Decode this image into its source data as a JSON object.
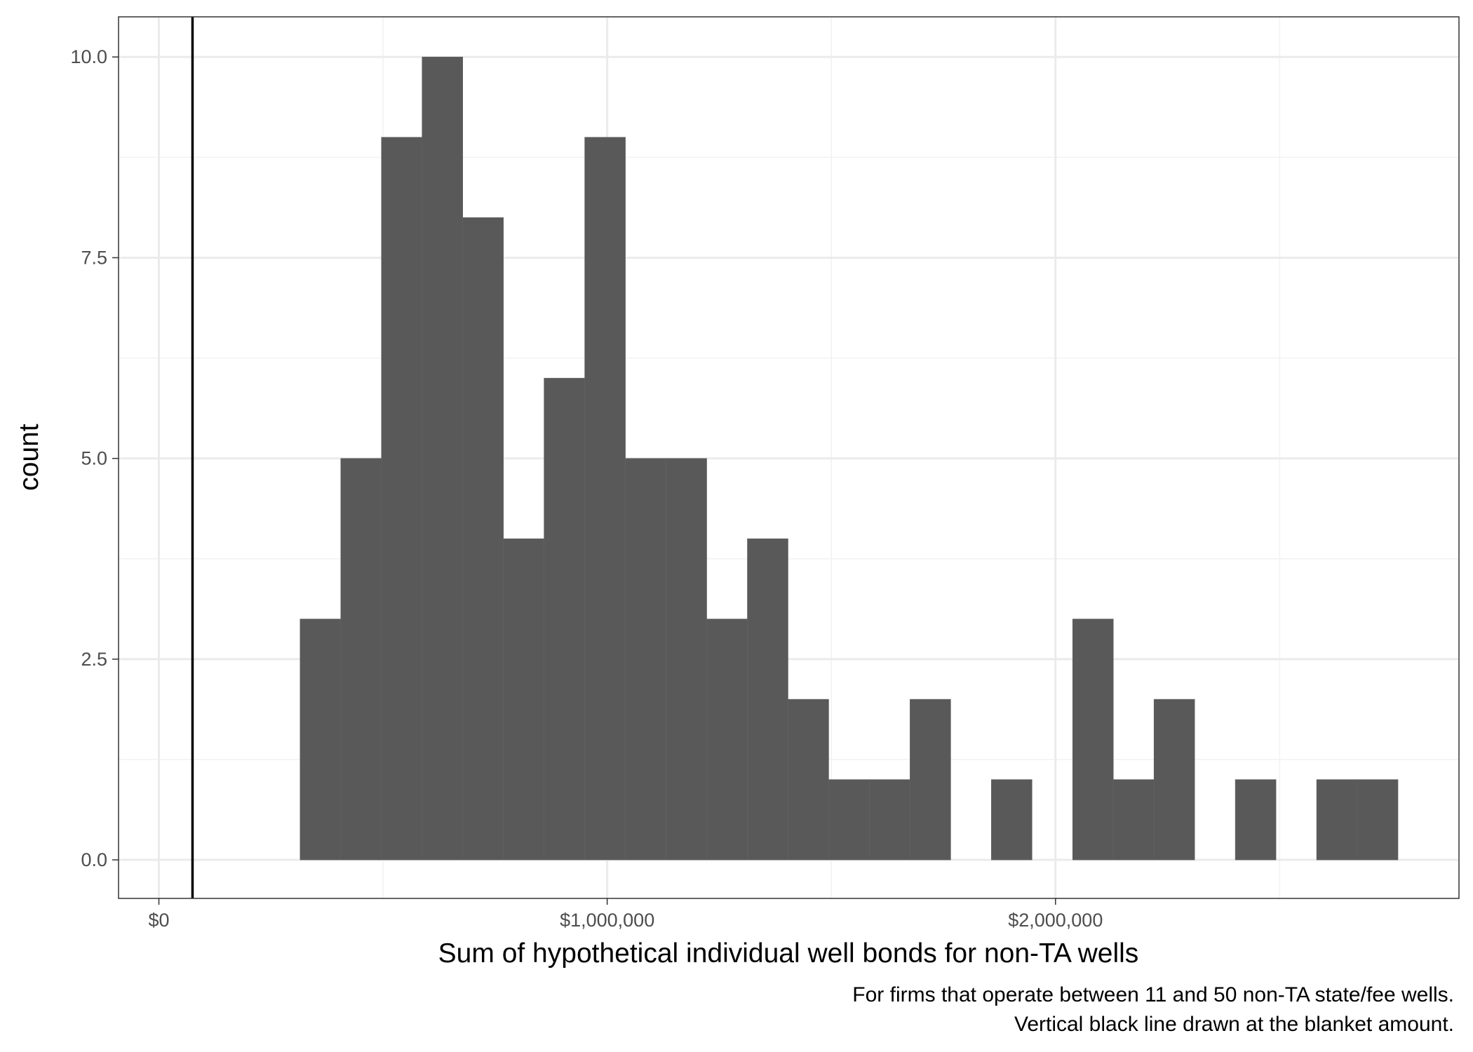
{
  "chart_data": {
    "type": "bar",
    "subtype": "histogram",
    "xlabel": "Sum of hypothetical individual well bonds for non-TA wells",
    "ylabel": "count",
    "caption_lines": [
      "For firms that operate between 11 and 50 non-TA state/fee wells.",
      "Vertical black line drawn at the blanket amount."
    ],
    "xlim": [
      -90000,
      2900000
    ],
    "ylim": [
      -0.48,
      10.5
    ],
    "x_ticks": [
      0,
      1000000,
      2000000
    ],
    "x_tick_labels": [
      "$0",
      "$1,000,000",
      "$2,000,000"
    ],
    "y_ticks": [
      0,
      2.5,
      5,
      7.5,
      10
    ],
    "y_tick_labels": [
      "0.0",
      "2.5",
      "5.0",
      "7.5",
      "10.0"
    ],
    "bin_width": 90700,
    "bins": [
      {
        "x0": 315000,
        "count": 3
      },
      {
        "x0": 405700,
        "count": 5
      },
      {
        "x0": 496400,
        "count": 9
      },
      {
        "x0": 587100,
        "count": 10
      },
      {
        "x0": 677800,
        "count": 8
      },
      {
        "x0": 768500,
        "count": 4
      },
      {
        "x0": 859200,
        "count": 6
      },
      {
        "x0": 949900,
        "count": 9
      },
      {
        "x0": 1040600,
        "count": 5
      },
      {
        "x0": 1131300,
        "count": 5
      },
      {
        "x0": 1222000,
        "count": 3
      },
      {
        "x0": 1312700,
        "count": 4
      },
      {
        "x0": 1403400,
        "count": 2
      },
      {
        "x0": 1494100,
        "count": 1
      },
      {
        "x0": 1584800,
        "count": 1
      },
      {
        "x0": 1675500,
        "count": 2
      },
      {
        "x0": 1766200,
        "count": 0
      },
      {
        "x0": 1856900,
        "count": 1
      },
      {
        "x0": 1947600,
        "count": 0
      },
      {
        "x0": 2038300,
        "count": 3
      },
      {
        "x0": 2129000,
        "count": 1
      },
      {
        "x0": 2219700,
        "count": 2
      },
      {
        "x0": 2310400,
        "count": 0
      },
      {
        "x0": 2401100,
        "count": 1
      },
      {
        "x0": 2491800,
        "count": 0
      },
      {
        "x0": 2582500,
        "count": 1
      },
      {
        "x0": 2673200,
        "count": 1
      }
    ],
    "reference_line": {
      "x": 75000,
      "color": "#000000"
    },
    "bar_color": "#595959",
    "grid": true
  }
}
